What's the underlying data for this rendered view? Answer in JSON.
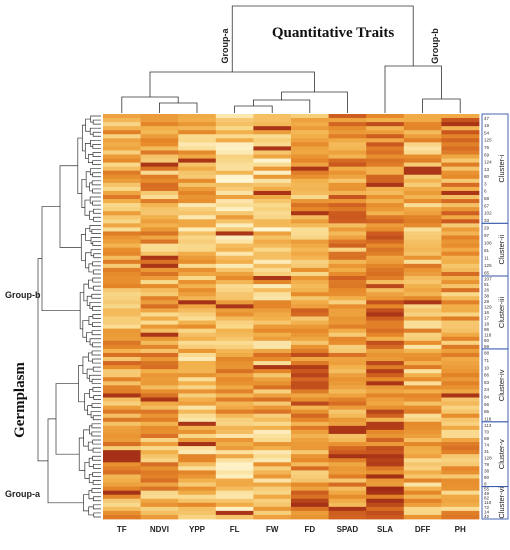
{
  "chart_data": {
    "type": "heatmap",
    "title": "Quantitative Traits",
    "ylabel": "Germplasm",
    "columns": [
      "TF",
      "NDVI",
      "YPP",
      "FL",
      "FW",
      "FD",
      "SPAD",
      "SLA",
      "DFF",
      "PH"
    ],
    "column_groups": [
      {
        "name": "Group-a",
        "members": [
          "TF",
          "NDVI",
          "YPP",
          "FL",
          "FW",
          "FD",
          "SPAD"
        ]
      },
      {
        "name": "Group-b",
        "members": [
          "SLA",
          "DFF",
          "PH"
        ]
      }
    ],
    "row_groups": [
      {
        "name": "Group-b",
        "clusters": [
          "Cluster-i",
          "Cluster-ii",
          "Cluster-iii"
        ]
      },
      {
        "name": "Group-a",
        "clusters": [
          "Cluster-iv",
          "Cluster-v",
          "Cluster-vi"
        ]
      }
    ],
    "clusters": [
      {
        "name": "Cluster-i",
        "labels": [
          "47",
          "19",
          "54",
          "125",
          "76",
          "69",
          "124",
          "13",
          "80",
          "3",
          "6",
          "58",
          "67",
          "102",
          "33"
        ]
      },
      {
        "name": "Cluster-ii",
        "labels": [
          "29",
          "97",
          "106",
          "81",
          "11",
          "125",
          "65"
        ]
      },
      {
        "name": "Cluster-iii",
        "labels": [
          "107",
          "51",
          "26",
          "38",
          "28",
          "129",
          "16",
          "17",
          "18",
          "96",
          "118",
          "60",
          "59"
        ]
      },
      {
        "name": "Cluster-iv",
        "labels": [
          "88",
          "71",
          "10",
          "86",
          "83",
          "24",
          "84",
          "66",
          "85",
          "116"
        ]
      },
      {
        "name": "Cluster-v",
        "labels": [
          "113",
          "70",
          "69",
          "74",
          "31",
          "128",
          "78",
          "38",
          "90",
          "8"
        ]
      },
      {
        "name": "Cluster-vi",
        "labels": [
          "55",
          "49",
          "82",
          "110",
          "72",
          "14",
          "42"
        ]
      }
    ],
    "color_scale": [
      "#fff7d6",
      "#f9d98c",
      "#f2b04b",
      "#e68a2a",
      "#cc5a1f",
      "#9e2a14"
    ],
    "n_rows": 100,
    "values_note_levels": "0-1 relative intensity (light = low, dark red = high)",
    "values": []
  }
}
